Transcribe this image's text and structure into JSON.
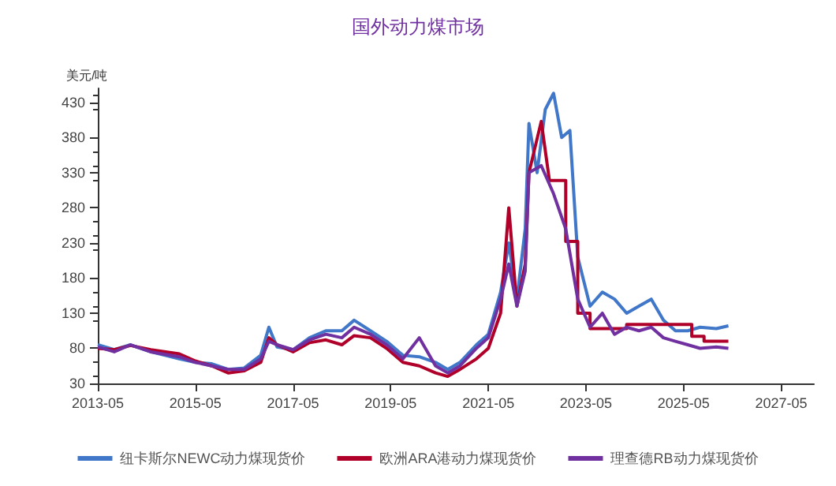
{
  "chart_data": {
    "type": "line",
    "title": "国外动力煤市场",
    "ylabel": "美元/吨",
    "xlim": [
      "2013-05",
      "2028-01"
    ],
    "xticks": [
      "2013-05",
      "2015-05",
      "2017-05",
      "2019-05",
      "2021-05",
      "2023-05",
      "2025-05",
      "2027-05"
    ],
    "ylim": [
      30,
      450
    ],
    "yticks": [
      30,
      80,
      130,
      180,
      230,
      280,
      330,
      380,
      430
    ],
    "grid": false,
    "legend": "bottom",
    "marker": "none",
    "line_style": "solid",
    "series": [
      {
        "name": "纽卡斯尔NEWC动力煤现货价",
        "color": "#4177c9",
        "x": [
          "2013-05",
          "2013-09",
          "2014-01",
          "2014-06",
          "2015-01",
          "2015-05",
          "2015-09",
          "2016-01",
          "2016-05",
          "2016-09",
          "2016-11",
          "2017-01",
          "2017-05",
          "2017-09",
          "2018-01",
          "2018-05",
          "2018-08",
          "2018-12",
          "2019-04",
          "2019-08",
          "2019-12",
          "2020-04",
          "2020-07",
          "2020-10",
          "2021-02",
          "2021-05",
          "2021-08",
          "2021-10",
          "2021-12",
          "2022-02",
          "2022-03",
          "2022-05",
          "2022-07",
          "2022-09",
          "2022-11",
          "2023-01",
          "2023-03",
          "2023-06",
          "2023-09",
          "2023-12",
          "2024-03",
          "2024-06",
          "2024-09",
          "2024-12",
          "2025-03",
          "2025-06",
          "2025-09",
          "2026-01",
          "2026-04"
        ],
        "values": [
          85,
          78,
          85,
          75,
          65,
          60,
          58,
          50,
          52,
          70,
          110,
          82,
          78,
          95,
          105,
          105,
          120,
          105,
          90,
          70,
          68,
          60,
          50,
          60,
          85,
          100,
          160,
          230,
          150,
          250,
          400,
          330,
          420,
          443,
          380,
          390,
          210,
          140,
          160,
          150,
          130,
          140,
          150,
          120,
          105,
          105,
          110,
          108,
          112
        ]
      },
      {
        "name": "欧洲ARA港动力煤现货价",
        "color": "#b0002a",
        "x": [
          "2013-05",
          "2013-09",
          "2014-01",
          "2014-06",
          "2015-01",
          "2015-05",
          "2015-09",
          "2016-01",
          "2016-05",
          "2016-09",
          "2016-11",
          "2017-01",
          "2017-05",
          "2017-09",
          "2018-01",
          "2018-05",
          "2018-08",
          "2018-12",
          "2019-04",
          "2019-08",
          "2019-12",
          "2020-04",
          "2020-07",
          "2020-10",
          "2021-02",
          "2021-05",
          "2021-08",
          "2021-10",
          "2021-12",
          "2022-02",
          "2022-03",
          "2022-06",
          "2022-08",
          "2022-12",
          "2022-12",
          "2023-03",
          "2023-03",
          "2023-06",
          "2023-06",
          "2024-03",
          "2024-03",
          "2025-07",
          "2025-07",
          "2025-10",
          "2025-10",
          "2026-04"
        ],
        "values": [
          80,
          78,
          84,
          78,
          72,
          62,
          55,
          45,
          48,
          60,
          95,
          85,
          75,
          88,
          92,
          85,
          98,
          95,
          80,
          60,
          55,
          45,
          40,
          50,
          65,
          80,
          130,
          280,
          140,
          200,
          330,
          403,
          319,
          319,
          232,
          232,
          130,
          130,
          108,
          108,
          114,
          114,
          97,
          97,
          90,
          90
        ]
      },
      {
        "name": "理查德RB动力煤现货价",
        "color": "#7030a0",
        "x": [
          "2013-05",
          "2013-09",
          "2014-01",
          "2014-06",
          "2015-01",
          "2015-05",
          "2015-09",
          "2016-01",
          "2016-05",
          "2016-09",
          "2016-11",
          "2017-01",
          "2017-05",
          "2017-09",
          "2018-01",
          "2018-05",
          "2018-08",
          "2018-12",
          "2019-04",
          "2019-08",
          "2019-12",
          "2020-04",
          "2020-07",
          "2020-10",
          "2021-02",
          "2021-05",
          "2021-08",
          "2021-10",
          "2021-12",
          "2022-02",
          "2022-03",
          "2022-06",
          "2022-09",
          "2022-12",
          "2023-03",
          "2023-06",
          "2023-09",
          "2023-12",
          "2024-03",
          "2024-06",
          "2024-09",
          "2024-12",
          "2025-03",
          "2025-06",
          "2025-09",
          "2026-01",
          "2026-04"
        ],
        "values": [
          82,
          75,
          85,
          75,
          68,
          60,
          55,
          50,
          50,
          65,
          90,
          85,
          78,
          92,
          100,
          95,
          110,
          100,
          85,
          65,
          95,
          55,
          45,
          55,
          80,
          95,
          150,
          200,
          140,
          190,
          330,
          340,
          300,
          250,
          150,
          110,
          130,
          100,
          110,
          105,
          110,
          95,
          90,
          85,
          80,
          82,
          80
        ]
      }
    ]
  }
}
